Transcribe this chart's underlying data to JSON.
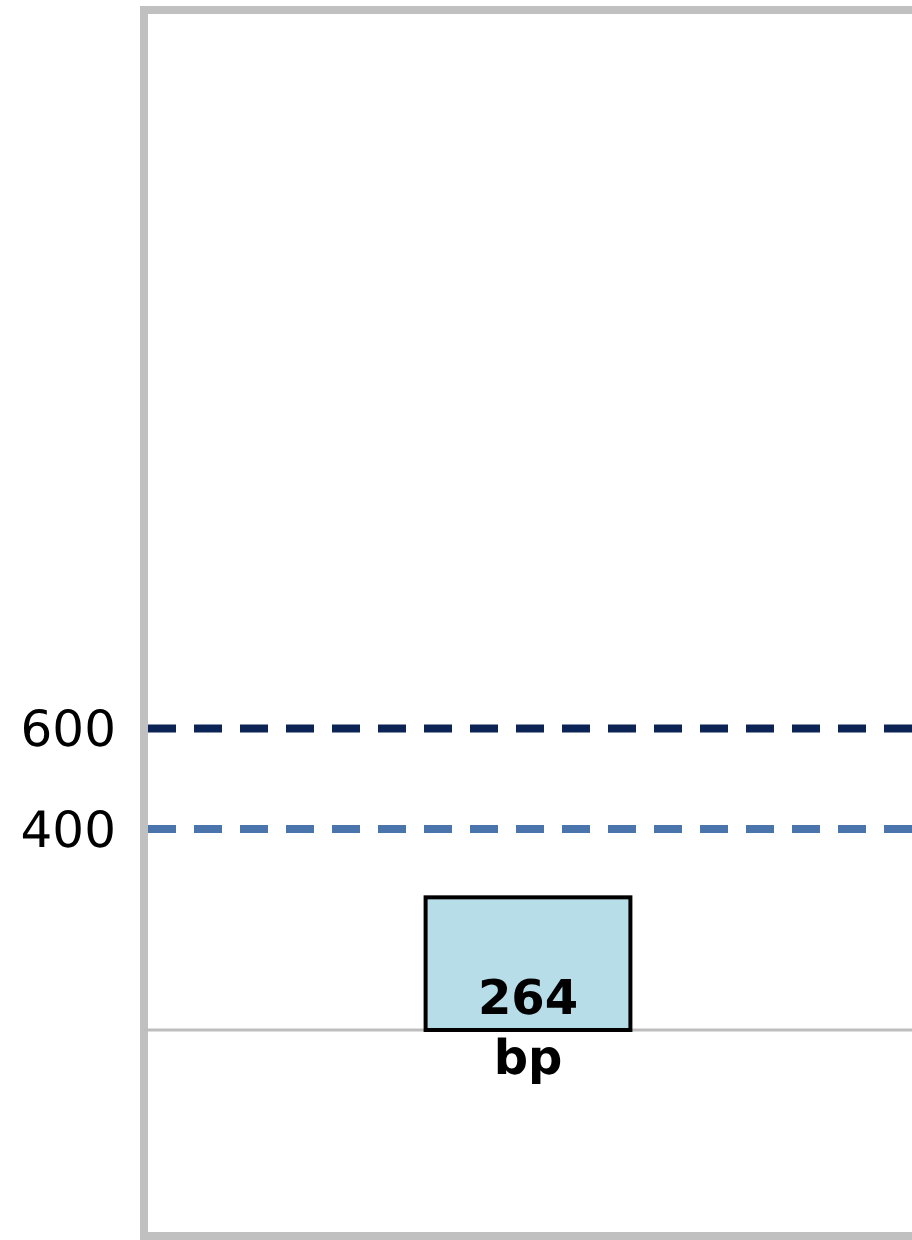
{
  "chart_data": {
    "type": "bar",
    "categories": [
      null
    ],
    "values": [
      264
    ],
    "color": "#b7dde8",
    "value_labels": [
      "264 bp"
    ],
    "ylim": [
      -410,
      2030
    ],
    "yticks": [
      400,
      600
    ],
    "ref_lines": [
      {
        "axis": "y",
        "value": 600,
        "color": "#0b2455",
        "line_style": "dashed"
      },
      {
        "axis": "y",
        "value": 400,
        "color": "#4a74ac",
        "line_style": "dashed"
      }
    ],
    "grid": false
  }
}
